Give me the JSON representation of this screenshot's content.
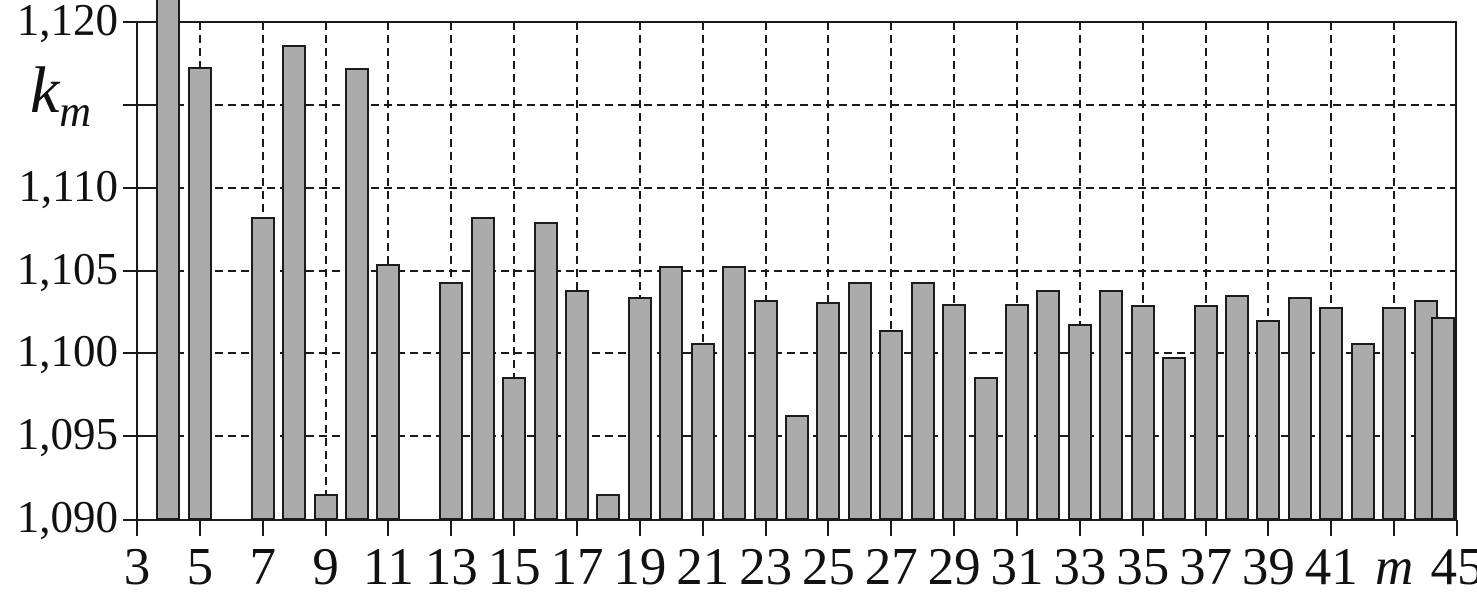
{
  "figure": {
    "ylabel_main": "k",
    "ylabel_sub": "m",
    "xlabel": "m",
    "background": "#ffffff",
    "line_color": "#1a1a1a"
  },
  "chart_data": {
    "type": "bar",
    "title": "",
    "ylabel": "k_m",
    "xlabel": "m",
    "ylim": [
      1090,
      1120
    ],
    "xlim": [
      3,
      45
    ],
    "grid": "dashed horizontal every 5 units and dashed vertical at every odd m; solid frame",
    "legend": "none",
    "bar_color": "#ababab",
    "bar_border_color": "#1c1c1c",
    "y_ticks": [
      {
        "value": 1120,
        "label": "1,120"
      },
      {
        "value": 1115,
        "label": ""
      },
      {
        "value": 1110,
        "label": "1,110"
      },
      {
        "value": 1105,
        "label": "1,105"
      },
      {
        "value": 1100,
        "label": "1,100"
      },
      {
        "value": 1095,
        "label": "1,095"
      },
      {
        "value": 1090,
        "label": "1,090"
      }
    ],
    "x_ticks": [
      {
        "value": 3,
        "label": "3"
      },
      {
        "value": 5,
        "label": "5"
      },
      {
        "value": 7,
        "label": "7"
      },
      {
        "value": 9,
        "label": "9"
      },
      {
        "value": 11,
        "label": "11"
      },
      {
        "value": 13,
        "label": "13"
      },
      {
        "value": 15,
        "label": "15"
      },
      {
        "value": 17,
        "label": "17"
      },
      {
        "value": 19,
        "label": "19"
      },
      {
        "value": 21,
        "label": "21"
      },
      {
        "value": 23,
        "label": "23"
      },
      {
        "value": 25,
        "label": "25"
      },
      {
        "value": 27,
        "label": "27"
      },
      {
        "value": 29,
        "label": "29"
      },
      {
        "value": 31,
        "label": "31"
      },
      {
        "value": 33,
        "label": "33"
      },
      {
        "value": 35,
        "label": "35"
      },
      {
        "value": 37,
        "label": "37"
      },
      {
        "value": 39,
        "label": "39"
      },
      {
        "value": 41,
        "label": "41"
      },
      {
        "value": 43,
        "label": "m",
        "italic": true
      },
      {
        "value": 45,
        "label": "45"
      }
    ],
    "bars": [
      {
        "m": 4,
        "value": 1122.0,
        "clipped": true
      },
      {
        "m": 5,
        "value": 1117.3
      },
      {
        "m": 7,
        "value": 1108.2
      },
      {
        "m": 8,
        "value": 1118.6
      },
      {
        "m": 9,
        "value": 1091.5
      },
      {
        "m": 10,
        "value": 1117.2
      },
      {
        "m": 11,
        "value": 1105.4
      },
      {
        "m": 13,
        "value": 1104.3
      },
      {
        "m": 14,
        "value": 1108.2
      },
      {
        "m": 15,
        "value": 1098.6
      },
      {
        "m": 16,
        "value": 1107.9
      },
      {
        "m": 17,
        "value": 1103.8
      },
      {
        "m": 18,
        "value": 1091.5
      },
      {
        "m": 19,
        "value": 1103.4
      },
      {
        "m": 20,
        "value": 1105.3
      },
      {
        "m": 21,
        "value": 1100.6
      },
      {
        "m": 22,
        "value": 1105.3
      },
      {
        "m": 23,
        "value": 1103.2
      },
      {
        "m": 24,
        "value": 1096.3
      },
      {
        "m": 25,
        "value": 1103.1
      },
      {
        "m": 26,
        "value": 1104.3
      },
      {
        "m": 27,
        "value": 1101.4
      },
      {
        "m": 28,
        "value": 1104.3
      },
      {
        "m": 29,
        "value": 1103.0
      },
      {
        "m": 30,
        "value": 1098.6
      },
      {
        "m": 31,
        "value": 1103.0
      },
      {
        "m": 32,
        "value": 1103.8
      },
      {
        "m": 33,
        "value": 1101.8
      },
      {
        "m": 34,
        "value": 1103.8
      },
      {
        "m": 35,
        "value": 1102.9
      },
      {
        "m": 36,
        "value": 1099.8
      },
      {
        "m": 37,
        "value": 1102.9
      },
      {
        "m": 38,
        "value": 1103.5
      },
      {
        "m": 39,
        "value": 1102.0
      },
      {
        "m": 40,
        "value": 1103.4
      },
      {
        "m": 41,
        "value": 1102.8
      },
      {
        "m": 42,
        "value": 1100.6
      },
      {
        "m": 43,
        "value": 1102.8
      },
      {
        "m": 44,
        "value": 1103.2
      },
      {
        "m": 45,
        "value": 1102.2
      }
    ]
  }
}
